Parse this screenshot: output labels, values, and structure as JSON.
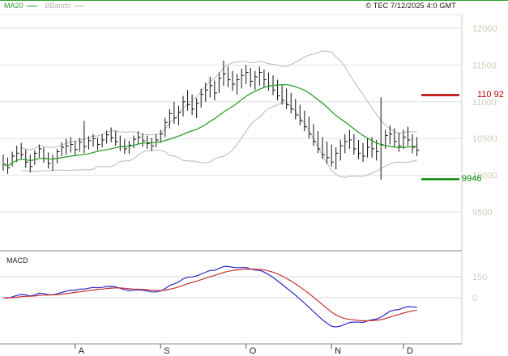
{
  "header": {
    "legend": [
      {
        "label": "MA20",
        "color": "#2e9e2e"
      },
      {
        "label": "BBands",
        "color": "#b4b4b4"
      }
    ],
    "copyright": "© TEC 7/12/2025 4:0 GMT"
  },
  "levels": {
    "resistance": {
      "label": "110 92",
      "value": 11092,
      "color": "#bb0000"
    },
    "support": {
      "label": "9946",
      "value": 9946,
      "color": "#008800"
    }
  },
  "macd_panel": {
    "label": "MACD",
    "ticks": [
      150,
      0
    ],
    "line_color": "#2929c8",
    "signal_color": "#c83232"
  },
  "chart_data": {
    "type": "candlestick-hlc",
    "title": "",
    "y_ticks": [
      12000,
      11500,
      11000,
      10500,
      10000,
      9500
    ],
    "y_range": [
      9250,
      12150
    ],
    "x_tick_labels": [
      "A",
      "S",
      "O",
      "N",
      "D"
    ],
    "x_tick_indices": [
      16,
      35,
      54,
      73,
      89
    ],
    "axis_label_color": "#cfccb8",
    "grid": true,
    "grid_color": "#e2e2e2",
    "candle_color": "#111111",
    "indicators": {
      "ma20": {
        "period": 20,
        "color": "#2e9e2e"
      },
      "bbands": {
        "period": 20,
        "stddev": 2,
        "color": "#b8b8b8"
      },
      "macd": {
        "fast": 12,
        "slow": 26,
        "signal": 9
      }
    },
    "candles": [
      [
        10280,
        10060,
        10150
      ],
      [
        10240,
        10020,
        10100
      ],
      [
        10320,
        10120,
        10260
      ],
      [
        10400,
        10180,
        10300
      ],
      [
        10440,
        10230,
        10280
      ],
      [
        10350,
        10100,
        10180
      ],
      [
        10280,
        10040,
        10120
      ],
      [
        10340,
        10140,
        10300
      ],
      [
        10420,
        10240,
        10360
      ],
      [
        10380,
        10170,
        10230
      ],
      [
        10310,
        10090,
        10160
      ],
      [
        10280,
        10060,
        10220
      ],
      [
        10360,
        10160,
        10320
      ],
      [
        10450,
        10260,
        10380
      ],
      [
        10500,
        10280,
        10400
      ],
      [
        10520,
        10310,
        10420
      ],
      [
        10470,
        10260,
        10350
      ],
      [
        10510,
        10320,
        10450
      ],
      [
        10740,
        10300,
        10390
      ],
      [
        10530,
        10350,
        10470
      ],
      [
        10560,
        10390,
        10500
      ],
      [
        10510,
        10340,
        10420
      ],
      [
        10560,
        10380,
        10480
      ],
      [
        10610,
        10430,
        10550
      ],
      [
        10650,
        10450,
        10510
      ],
      [
        10600,
        10400,
        10460
      ],
      [
        10540,
        10330,
        10390
      ],
      [
        10490,
        10290,
        10360
      ],
      [
        10470,
        10290,
        10410
      ],
      [
        10540,
        10370,
        10490
      ],
      [
        10600,
        10420,
        10520
      ],
      [
        10570,
        10390,
        10470
      ],
      [
        10540,
        10360,
        10430
      ],
      [
        10510,
        10330,
        10400
      ],
      [
        10560,
        10380,
        10480
      ],
      [
        10620,
        10440,
        10560
      ],
      [
        10780,
        10520,
        10720
      ],
      [
        10900,
        10640,
        10840
      ],
      [
        11000,
        10700,
        10780
      ],
      [
        10950,
        10680,
        10860
      ],
      [
        11080,
        10800,
        11000
      ],
      [
        11160,
        10880,
        10960
      ],
      [
        11100,
        10820,
        10900
      ],
      [
        11050,
        10780,
        10980
      ],
      [
        11180,
        10920,
        11100
      ],
      [
        11260,
        11000,
        11160
      ],
      [
        11340,
        11060,
        11220
      ],
      [
        11290,
        11020,
        11120
      ],
      [
        11400,
        11120,
        11320
      ],
      [
        11560,
        11220,
        11380
      ],
      [
        11480,
        11200,
        11300
      ],
      [
        11420,
        11150,
        11240
      ],
      [
        11380,
        11100,
        11300
      ],
      [
        11450,
        11180,
        11360
      ],
      [
        11500,
        11240,
        11400
      ],
      [
        11460,
        11200,
        11280
      ],
      [
        11420,
        11160,
        11340
      ],
      [
        11480,
        11220,
        11400
      ],
      [
        11440,
        11190,
        11300
      ],
      [
        11400,
        11150,
        11220
      ],
      [
        11360,
        11090,
        11160
      ],
      [
        11300,
        11020,
        11080
      ],
      [
        11240,
        10960,
        11020
      ],
      [
        11180,
        10900,
        10960
      ],
      [
        11120,
        10840,
        10900
      ],
      [
        11040,
        10760,
        10820
      ],
      [
        10960,
        10680,
        10740
      ],
      [
        10880,
        10600,
        10660
      ],
      [
        10800,
        10500,
        10560
      ],
      [
        10700,
        10400,
        10460
      ],
      [
        10600,
        10300,
        10360
      ],
      [
        10520,
        10220,
        10280
      ],
      [
        10460,
        10160,
        10240
      ],
      [
        10420,
        10120,
        10180
      ],
      [
        10380,
        10080,
        10300
      ],
      [
        10480,
        10200,
        10400
      ],
      [
        10560,
        10300,
        10460
      ],
      [
        10620,
        10360,
        10480
      ],
      [
        10560,
        10280,
        10360
      ],
      [
        10480,
        10220,
        10300
      ],
      [
        10440,
        10180,
        10260
      ],
      [
        10500,
        10240,
        10380
      ],
      [
        10520,
        10240,
        10360
      ],
      [
        10480,
        10200,
        10320
      ],
      [
        11060,
        9940,
        10420
      ],
      [
        10620,
        10360,
        10540
      ],
      [
        10680,
        10420,
        10560
      ],
      [
        10640,
        10380,
        10460
      ],
      [
        10580,
        10320,
        10400
      ],
      [
        10620,
        10360,
        10520
      ],
      [
        10660,
        10400,
        10480
      ],
      [
        10560,
        10300,
        10380
      ],
      [
        10520,
        10260,
        10340
      ]
    ]
  }
}
